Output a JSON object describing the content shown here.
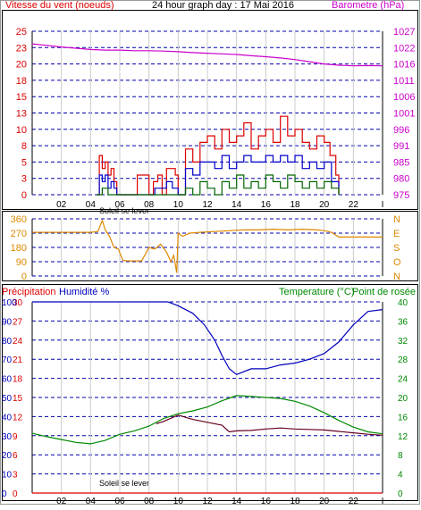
{
  "colors": {
    "wind_avg": "#0000cc",
    "wind_gust": "#dd0000",
    "wind_min": "#006600",
    "barometer": "#cc00cc",
    "direction": "#dd8800",
    "humidity": "#0000bb",
    "temperature": "#008800",
    "dewpoint": "#660022",
    "precip": "#dd0000",
    "grid": "#0000aa",
    "frame": "#000000"
  },
  "header": {
    "wind_label": "Vitesse du vent (noeuds)",
    "title": "24 hour graph day : 17 Mai 2016",
    "baro_label": "Barometre (hPa)"
  },
  "mid_header": {
    "precip_label": "Précipitation",
    "humidity_label": "Humidité %",
    "temp_label": "Temperature (°C)",
    "dew_label": "Point de rosée"
  },
  "x_axis": {
    "ticks": [
      "02",
      "04",
      "06",
      "08",
      "10",
      "12",
      "14",
      "16",
      "18",
      "20",
      "22",
      "I"
    ],
    "sunrise_label": "Soleil se lever"
  },
  "chart_data": [
    {
      "type": "line",
      "title": "24 hour graph day : 17 Mai 2016",
      "x_unit": "hour",
      "xlim": [
        0,
        24
      ],
      "left_axis": {
        "label": "Vitesse du vent (noeuds)",
        "ticks": [
          "0",
          "3",
          "5",
          "8",
          "10",
          "13",
          "15",
          "18",
          "20",
          "23",
          "25"
        ],
        "ylim": [
          0,
          25
        ]
      },
      "right_axis": {
        "label": "Barometre (hPa)",
        "ticks": [
          "975",
          "980",
          "985",
          "991",
          "996",
          "1001",
          "1006",
          "1011",
          "1016",
          "1022",
          "1027"
        ],
        "ylim": [
          975,
          1027
        ]
      },
      "series": [
        {
          "name": "Barometre (hPa)",
          "axis": "right",
          "x": [
            0,
            1,
            2,
            3,
            4,
            5,
            6,
            7,
            8,
            9,
            10,
            11,
            12,
            13,
            14,
            15,
            16,
            17,
            18,
            19,
            20,
            21,
            22,
            23,
            24
          ],
          "values": [
            1023,
            1022.5,
            1022,
            1021.6,
            1021.2,
            1021,
            1021,
            1020.8,
            1020.8,
            1020.7,
            1020.5,
            1020.2,
            1020,
            1019.8,
            1019.6,
            1019.2,
            1018.9,
            1018.5,
            1018,
            1017.3,
            1016.6,
            1016.2,
            1016,
            1016.1,
            1016
          ]
        },
        {
          "name": "gust",
          "axis": "left",
          "x": [
            4.4,
            4.6,
            4.8,
            5.0,
            5.2,
            5.4,
            5.6,
            5.8,
            6.0,
            7.0,
            7.2,
            8.0,
            8.3,
            8.6,
            8.9,
            9.2,
            9.5,
            9.8,
            10.0,
            10.5,
            11.0,
            11.5,
            12.0,
            12.5,
            13.0,
            13.5,
            14.0,
            14.5,
            15.0,
            15.5,
            16.0,
            16.5,
            17.0,
            17.5,
            18.0,
            18.5,
            19.0,
            19.5,
            20.0,
            20.4,
            20.8,
            21.0
          ],
          "values": [
            0,
            6,
            4,
            5,
            3,
            4,
            2,
            0,
            0,
            0,
            3,
            0,
            2,
            3,
            0,
            4,
            4,
            3,
            0,
            7,
            5,
            8,
            9,
            7,
            10,
            8,
            9,
            11,
            7,
            9,
            10,
            8,
            12,
            9,
            10,
            8,
            7,
            9,
            8,
            6,
            3,
            0
          ]
        },
        {
          "name": "average",
          "axis": "left",
          "x": [
            4.4,
            4.6,
            4.8,
            5.0,
            5.2,
            5.4,
            5.6,
            5.8,
            8.0,
            8.4,
            8.8,
            9.2,
            9.6,
            10.0,
            10.5,
            11.0,
            11.5,
            12.0,
            12.5,
            13.0,
            13.5,
            14.0,
            14.5,
            15.0,
            15.5,
            16.0,
            16.5,
            17.0,
            17.5,
            18.0,
            18.5,
            19.0,
            19.5,
            20.0,
            20.5,
            21.0
          ],
          "values": [
            0,
            3,
            2,
            3,
            1,
            2,
            1,
            0,
            0,
            1,
            1,
            2,
            1,
            0,
            4,
            3,
            5,
            5,
            4,
            6,
            4,
            5,
            6,
            5,
            5,
            6,
            5,
            6,
            5,
            6,
            4,
            5,
            4,
            5,
            2,
            0
          ]
        },
        {
          "name": "minimum",
          "axis": "left",
          "x": [
            4.4,
            4.8,
            5.2,
            5.6,
            10.0,
            10.5,
            11.0,
            11.5,
            12.0,
            12.5,
            13.0,
            13.5,
            14.0,
            14.5,
            15.0,
            15.5,
            16.0,
            16.5,
            17.0,
            17.5,
            18.0,
            18.5,
            19.0,
            19.5,
            20.0,
            20.5,
            21.0
          ],
          "values": [
            0,
            1,
            0,
            0,
            0,
            1,
            0,
            2,
            1,
            0,
            2,
            1,
            3,
            1,
            2,
            1,
            3,
            2,
            1,
            3,
            2,
            1,
            2,
            1,
            2,
            1,
            0
          ]
        }
      ]
    },
    {
      "type": "line",
      "title": "",
      "x_unit": "hour",
      "xlim": [
        0,
        24
      ],
      "left_axis": {
        "ticks": [
          "0",
          "90",
          "180",
          "270",
          "360"
        ],
        "ylim": [
          0,
          360
        ]
      },
      "right_axis": {
        "ticks": [
          "N",
          "O",
          "S",
          "E",
          "N"
        ]
      },
      "series": [
        {
          "name": "direction",
          "x": [
            0,
            1,
            2,
            3,
            4,
            4.5,
            4.8,
            5.0,
            5.3,
            5.6,
            5.9,
            6.2,
            6.5,
            7.0,
            7.5,
            8.0,
            8.4,
            8.8,
            9.2,
            9.5,
            9.7,
            9.9,
            10.0,
            10.3,
            10.8,
            11.5,
            12.5,
            13.5,
            14.5,
            15.5,
            16.5,
            17.5,
            18.5,
            19.5,
            20.0,
            20.5,
            21.0,
            22.0,
            23.0,
            24.0
          ],
          "values": [
            275,
            275,
            275,
            275,
            275,
            280,
            350,
            290,
            250,
            180,
            170,
            100,
            95,
            95,
            95,
            180,
            170,
            200,
            150,
            90,
            130,
            20,
            270,
            250,
            270,
            275,
            280,
            285,
            290,
            290,
            295,
            290,
            295,
            290,
            285,
            275,
            245,
            245,
            245,
            245
          ]
        }
      ]
    },
    {
      "type": "line",
      "title": "",
      "x_unit": "hour",
      "xlim": [
        0,
        24
      ],
      "axes": {
        "precipitation": {
          "label": "Précipitation",
          "ticks": [
            "0",
            "3",
            "6",
            "9",
            "12",
            "15",
            "18",
            "21",
            "24",
            "27",
            "30"
          ],
          "ylim": [
            0,
            30
          ]
        },
        "humidity": {
          "label": "Humidité %",
          "ticks": [
            "0",
            "10",
            "20",
            "30",
            "40",
            "50",
            "60",
            "70",
            "80",
            "90",
            "100"
          ],
          "ylim": [
            0,
            100
          ]
        },
        "temperature": {
          "label": "Temperature (°C)",
          "ticks": [
            "0",
            "4",
            "8",
            "12",
            "16",
            "20",
            "24",
            "28",
            "32",
            "36",
            "40"
          ],
          "ylim": [
            0,
            40
          ]
        }
      },
      "series": [
        {
          "name": "Humidité %",
          "axis": "humidity",
          "x": [
            0,
            2,
            4,
            6,
            8,
            9.3,
            10,
            11,
            11.8,
            12.5,
            13,
            13.5,
            14,
            15,
            16,
            17,
            18,
            19,
            20,
            21,
            22,
            23,
            24
          ],
          "values": [
            100,
            100,
            100,
            100,
            100,
            100,
            98,
            94,
            88,
            80,
            72,
            65,
            62,
            65,
            65,
            67,
            68,
            70,
            73,
            79,
            88,
            95,
            96
          ]
        },
        {
          "name": "Temperature (°C)",
          "axis": "temperature",
          "x": [
            0,
            1,
            2,
            3,
            4,
            5,
            6,
            7,
            8,
            9,
            10,
            11,
            12,
            13,
            14,
            15,
            16,
            17,
            18,
            19,
            20,
            21,
            22,
            23,
            24
          ],
          "values": [
            12.5,
            11.8,
            11.2,
            10.6,
            10.3,
            11.0,
            12.3,
            13.0,
            14.0,
            15.6,
            16.6,
            17.2,
            18.0,
            19.3,
            20.4,
            20.2,
            20.0,
            19.8,
            19.2,
            18.2,
            16.8,
            15.2,
            13.8,
            12.8,
            12.4
          ]
        },
        {
          "name": "Point de rosée",
          "axis": "temperature",
          "x": [
            8.5,
            9,
            10,
            11,
            12,
            13,
            13.5,
            14,
            15,
            16,
            17,
            18,
            19,
            20,
            21,
            22,
            23,
            24
          ],
          "values": [
            14.5,
            15.0,
            16.3,
            15.4,
            14.8,
            14.2,
            12.8,
            13.0,
            13.1,
            13.4,
            13.6,
            13.4,
            13.3,
            13.2,
            12.9,
            12.6,
            12.3,
            12.1
          ]
        },
        {
          "name": "Précipitation",
          "axis": "precipitation",
          "x": [
            0,
            24
          ],
          "values": [
            0,
            0
          ]
        }
      ]
    }
  ]
}
